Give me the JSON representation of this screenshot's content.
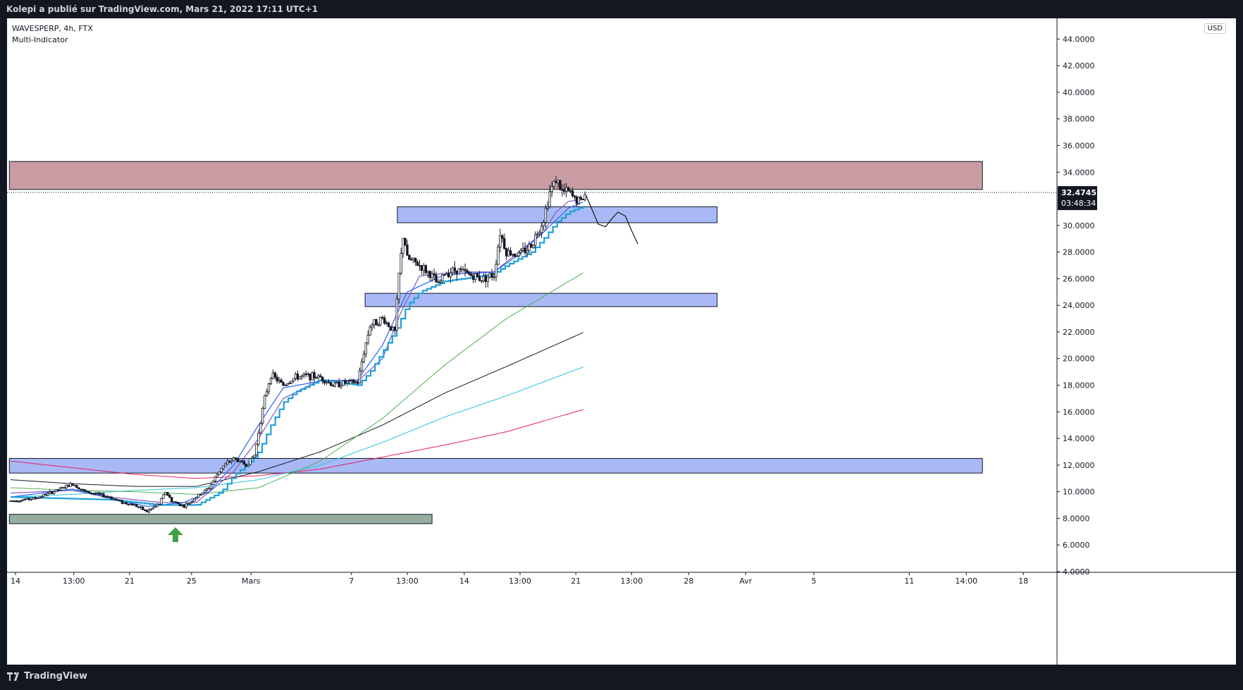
{
  "header": {
    "attribution": "Kolepi a publié sur TradingView.com, Mars 21, 2022 17:11 UTC+1"
  },
  "legend": {
    "symbol": "WAVESPERP, 4h, FTX",
    "indicator": "Multi-Indicator"
  },
  "currency": "USD",
  "footer": {
    "brand": "TradingView"
  },
  "colors": {
    "candle": "#131722",
    "ema_short": "#2962ff",
    "ema_purple": "#7e57c2",
    "line_cyan_step": "#1ea0d6",
    "ma_green": "#4caf50",
    "ma_black": "#131722",
    "ma_cyan": "#26c6da",
    "ma_red": "#e91e63",
    "zone_blue": "#a8b9f5",
    "zone_red": "#c99ca3",
    "zone_gray": "#95ac9f",
    "arrow": "#43a047"
  },
  "chart_data": {
    "type": "candlestick",
    "title": "WAVESPERP, 4h, FTX",
    "ylim": [
      4,
      45.5
    ],
    "y_ticks": [
      "44.0000",
      "42.0000",
      "40.0000",
      "38.0000",
      "36.0000",
      "34.0000",
      "30.0000",
      "28.0000",
      "26.0000",
      "24.0000",
      "22.0000",
      "20.0000",
      "18.0000",
      "16.0000",
      "14.0000",
      "12.0000",
      "10.0000",
      "8.0000",
      "6.0000",
      "4.0000"
    ],
    "last_price": "32.4745",
    "countdown": "03:48:34",
    "x_labels": [
      {
        "label": "14",
        "t": 0.4
      },
      {
        "label": "13:00",
        "t": 5.1
      },
      {
        "label": "21",
        "t": 9.6
      },
      {
        "label": "25",
        "t": 14.6
      },
      {
        "label": "Mars",
        "t": 19.4
      },
      {
        "label": "7",
        "t": 27.5
      },
      {
        "label": "13:00",
        "t": 32.0
      },
      {
        "label": "14",
        "t": 36.6
      },
      {
        "label": "13:00",
        "t": 41.1
      },
      {
        "label": "21",
        "t": 45.6
      },
      {
        "label": "13:00",
        "t": 50.1
      },
      {
        "label": "28",
        "t": 54.7
      },
      {
        "label": "Avr",
        "t": 59.3
      },
      {
        "label": "5",
        "t": 64.8
      },
      {
        "label": "11",
        "t": 72.5
      },
      {
        "label": "14:00",
        "t": 77.1
      },
      {
        "label": "18",
        "t": 81.7
      }
    ],
    "price_keypoints": [
      [
        0,
        9.3
      ],
      [
        2,
        9.5
      ],
      [
        4,
        10.2
      ],
      [
        5,
        10.6
      ],
      [
        6,
        10.0
      ],
      [
        8,
        9.6
      ],
      [
        9,
        9.2
      ],
      [
        10,
        9.0
      ],
      [
        11,
        8.5
      ],
      [
        12,
        9.1
      ],
      [
        12.5,
        10.0
      ],
      [
        13,
        9.3
      ],
      [
        14,
        8.9
      ],
      [
        15,
        9.6
      ],
      [
        16,
        10.3
      ],
      [
        17,
        11.8
      ],
      [
        18,
        12.5
      ],
      [
        19,
        12.0
      ],
      [
        19.7,
        12.8
      ],
      [
        20,
        14.5
      ],
      [
        20.5,
        17.0
      ],
      [
        21,
        18.8
      ],
      [
        22,
        18.0
      ],
      [
        23,
        18.6
      ],
      [
        24,
        18.7
      ],
      [
        25,
        18.6
      ],
      [
        26,
        18.0
      ],
      [
        27,
        18.2
      ],
      [
        28,
        18.2
      ],
      [
        28.5,
        20.5
      ],
      [
        29,
        22.5
      ],
      [
        30,
        23.0
      ],
      [
        31,
        22.0
      ],
      [
        31.3,
        26.0
      ],
      [
        31.7,
        29.5
      ],
      [
        32,
        27.5
      ],
      [
        33,
        27.0
      ],
      [
        34,
        26.2
      ],
      [
        34.5,
        25.5
      ],
      [
        35,
        26.4
      ],
      [
        36,
        26.7
      ],
      [
        37,
        26.3
      ],
      [
        38,
        26.0
      ],
      [
        39,
        26.3
      ],
      [
        39.5,
        29.5
      ],
      [
        40,
        28.0
      ],
      [
        41,
        27.8
      ],
      [
        42,
        28.5
      ],
      [
        43,
        30.5
      ],
      [
        43.5,
        32.5
      ],
      [
        44,
        33.5
      ],
      [
        44.5,
        32.5
      ],
      [
        45,
        32.5
      ],
      [
        45.5,
        32.0
      ],
      [
        46,
        31.8
      ],
      [
        46.4,
        32.4
      ]
    ],
    "ma_lines": [
      {
        "id": "ma_red",
        "points": [
          [
            0,
            12.3
          ],
          [
            5,
            11.8
          ],
          [
            10,
            11.3
          ],
          [
            15,
            11.0
          ],
          [
            20,
            11.2
          ],
          [
            25,
            11.7
          ],
          [
            30,
            12.6
          ],
          [
            35,
            13.5
          ],
          [
            40,
            14.5
          ],
          [
            46.3,
            16.2
          ]
        ]
      },
      {
        "id": "ma_cyan",
        "points": [
          [
            0,
            9.6
          ],
          [
            5,
            9.8
          ],
          [
            10,
            10.1
          ],
          [
            15,
            10.3
          ],
          [
            20,
            10.9
          ],
          [
            25,
            12.0
          ],
          [
            30,
            13.7
          ],
          [
            35,
            15.6
          ],
          [
            40,
            17.2
          ],
          [
            46.3,
            19.4
          ]
        ]
      },
      {
        "id": "ma_black",
        "points": [
          [
            0,
            10.9
          ],
          [
            5,
            10.6
          ],
          [
            10,
            10.4
          ],
          [
            15,
            10.4
          ],
          [
            20,
            11.5
          ],
          [
            25,
            13.0
          ],
          [
            30,
            15.0
          ],
          [
            35,
            17.4
          ],
          [
            40,
            19.4
          ],
          [
            46.3,
            22.0
          ]
        ]
      },
      {
        "id": "ma_green",
        "points": [
          [
            0,
            10.3
          ],
          [
            5,
            10.1
          ],
          [
            10,
            10.0
          ],
          [
            15,
            9.8
          ],
          [
            20,
            10.3
          ],
          [
            25,
            12.3
          ],
          [
            30,
            15.5
          ],
          [
            35,
            19.5
          ],
          [
            40,
            23.0
          ],
          [
            46.3,
            26.5
          ]
        ]
      },
      {
        "id": "ema_purple",
        "points": [
          [
            0,
            9.9
          ],
          [
            5,
            10.1
          ],
          [
            8,
            9.6
          ],
          [
            12,
            9.2
          ],
          [
            15,
            9.2
          ],
          [
            18,
            11.5
          ],
          [
            20,
            14.0
          ],
          [
            22,
            17.0
          ],
          [
            25,
            18.4
          ],
          [
            28,
            18.3
          ],
          [
            30,
            20.0
          ],
          [
            31.5,
            23.5
          ],
          [
            33,
            26.2
          ],
          [
            36,
            26.5
          ],
          [
            39,
            26.5
          ],
          [
            41,
            28.0
          ],
          [
            43,
            29.5
          ],
          [
            44,
            31.0
          ],
          [
            45,
            31.8
          ],
          [
            46.3,
            32.0
          ]
        ]
      },
      {
        "id": "ema_short",
        "points": [
          [
            0,
            9.6
          ],
          [
            5,
            10.2
          ],
          [
            8,
            9.5
          ],
          [
            11,
            8.9
          ],
          [
            14,
            9.2
          ],
          [
            16,
            10.0
          ],
          [
            18,
            12.0
          ],
          [
            20,
            15.0
          ],
          [
            22,
            17.8
          ],
          [
            25,
            18.3
          ],
          [
            28,
            18.4
          ],
          [
            30,
            21.0
          ],
          [
            32,
            25.0
          ],
          [
            35,
            26.3
          ],
          [
            39,
            26.5
          ],
          [
            41,
            27.8
          ],
          [
            43,
            29.5
          ],
          [
            45,
            31.3
          ],
          [
            46.3,
            31.8
          ]
        ]
      }
    ],
    "step_line": [
      [
        0,
        9.6
      ],
      [
        8,
        9.4
      ],
      [
        12,
        9.0
      ],
      [
        15,
        9.0
      ],
      [
        17,
        10.0
      ],
      [
        18,
        11.2
      ],
      [
        19,
        12.0
      ],
      [
        20,
        13.0
      ],
      [
        21,
        15.0
      ],
      [
        22,
        16.7
      ],
      [
        23,
        17.5
      ],
      [
        25,
        18.4
      ],
      [
        28,
        18.0
      ],
      [
        29,
        19.0
      ],
      [
        30,
        20.5
      ],
      [
        31,
        22.0
      ],
      [
        32,
        24.0
      ],
      [
        33,
        25.0
      ],
      [
        35,
        25.8
      ],
      [
        38,
        26.2
      ],
      [
        39,
        26.4
      ],
      [
        40,
        27.0
      ],
      [
        41,
        27.5
      ],
      [
        42,
        28.0
      ],
      [
        43,
        29.0
      ],
      [
        44,
        30.2
      ],
      [
        45,
        31.0
      ],
      [
        46.3,
        31.5
      ]
    ],
    "zones": [
      {
        "id": "zone-resistance-red",
        "color": "red",
        "t0": -0.1,
        "t1": 78.4,
        "y_top": 34.8,
        "y_bottom": 32.7
      },
      {
        "id": "zone-blue-30",
        "color": "blue",
        "t0": 31.2,
        "t1": 57.0,
        "y_top": 31.4,
        "y_bottom": 30.2
      },
      {
        "id": "zone-blue-24",
        "color": "blue",
        "t0": 28.6,
        "t1": 57.0,
        "y_top": 24.9,
        "y_bottom": 23.9
      },
      {
        "id": "zone-blue-12",
        "color": "blue",
        "t0": -0.1,
        "t1": 78.4,
        "y_top": 12.5,
        "y_bottom": 11.4
      },
      {
        "id": "zone-gray-8",
        "color": "gray",
        "t0": -0.1,
        "t1": 34.0,
        "y_top": 8.3,
        "y_bottom": 7.6
      }
    ],
    "projection": [
      [
        46.4,
        32.3
      ],
      [
        46.9,
        31.2
      ],
      [
        47.4,
        30.1
      ],
      [
        48.0,
        29.9
      ],
      [
        48.5,
        30.5
      ],
      [
        49.0,
        31.0
      ],
      [
        49.6,
        30.7
      ],
      [
        50.1,
        29.6
      ],
      [
        50.6,
        28.6
      ]
    ],
    "arrow_t": 13.3,
    "arrow_price": 6.8,
    "t_max": 84.3
  }
}
